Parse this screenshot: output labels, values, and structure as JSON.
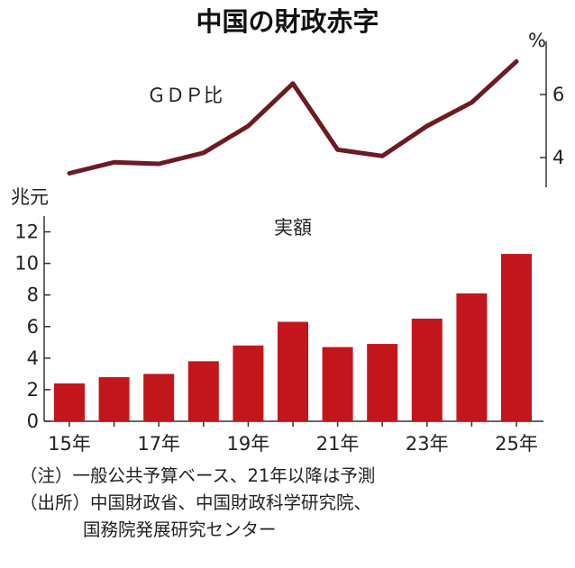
{
  "title": "中国の財政赤字",
  "chart_data": [
    {
      "type": "line",
      "series": [
        {
          "name": "ＧＤＰ比",
          "values": [
            3.5,
            3.85,
            3.8,
            4.15,
            5.0,
            6.35,
            4.25,
            4.05,
            5.0,
            5.75,
            7.05
          ]
        }
      ],
      "x": [
        "15",
        "16",
        "17",
        "18",
        "19",
        "20",
        "21",
        "22",
        "23",
        "24",
        "25"
      ],
      "ylabel": "%",
      "yticks": [
        "4",
        "6"
      ],
      "ylim": [
        3,
        7.5
      ],
      "color": "#6e1a22"
    },
    {
      "type": "bar",
      "series": [
        {
          "name": "実額",
          "values": [
            2.4,
            2.8,
            3.0,
            3.8,
            4.8,
            6.3,
            4.7,
            4.9,
            6.5,
            8.1,
            10.6
          ]
        }
      ],
      "categories": [
        "15",
        "16",
        "17",
        "18",
        "19",
        "20",
        "21",
        "22",
        "23",
        "24",
        "25"
      ],
      "xticks": [
        "15年",
        "17年",
        "19年",
        "21年",
        "23年",
        "25年"
      ],
      "ylabel": "兆元",
      "yticks": [
        "0",
        "2",
        "4",
        "6",
        "8",
        "10",
        "12"
      ],
      "ylim": [
        0,
        13
      ],
      "color": "#c3161c"
    }
  ],
  "notes": {
    "note1": "（注）一般公共予算ベース、21年以降は予測",
    "source1": "（出所）中国財政省、中国財政科学研究院、",
    "source2": "国務院発展研究センター"
  }
}
